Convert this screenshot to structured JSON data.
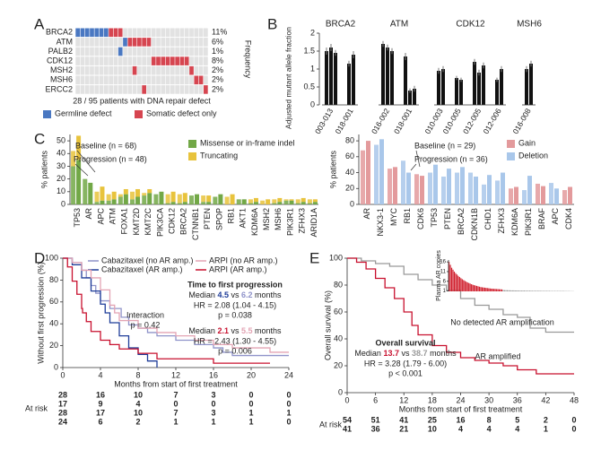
{
  "chart_data": [
    {
      "type": "oncoprint",
      "label": "A",
      "genes": [
        "BRCA2",
        "ATM",
        "PALB2",
        "CDK12",
        "MSH2",
        "MSH6",
        "ERCC2"
      ],
      "values": [
        11,
        6,
        1,
        8,
        2,
        2,
        2
      ],
      "value_labels": [
        "11%",
        "6%",
        "1%",
        "8%",
        "2%",
        "2%",
        "2%"
      ],
      "ylabel": "Frequency",
      "caption": "28 / 95 patients with DNA repair defect",
      "series": [
        {
          "name": "Germline defect",
          "color": "#4a78c2"
        },
        {
          "name": "Somatic defect only",
          "color": "#d64550"
        }
      ],
      "matrix": [
        [
          1,
          1,
          1,
          1,
          1,
          1,
          1,
          2,
          2,
          2,
          0,
          0,
          0,
          0,
          0,
          0,
          0,
          0,
          0,
          0,
          0,
          0,
          0,
          0,
          0,
          0,
          0,
          0
        ],
        [
          0,
          0,
          0,
          0,
          0,
          0,
          0,
          0,
          0,
          0,
          1,
          2,
          2,
          2,
          2,
          2,
          0,
          0,
          0,
          0,
          0,
          0,
          0,
          0,
          0,
          0,
          0,
          0
        ],
        [
          0,
          0,
          0,
          0,
          0,
          0,
          0,
          0,
          0,
          1,
          0,
          0,
          0,
          0,
          0,
          0,
          0,
          0,
          0,
          0,
          0,
          0,
          0,
          0,
          0,
          0,
          0,
          0
        ],
        [
          0,
          0,
          0,
          0,
          0,
          0,
          0,
          0,
          0,
          0,
          0,
          0,
          0,
          0,
          0,
          0,
          2,
          2,
          2,
          2,
          2,
          2,
          2,
          2,
          0,
          0,
          0,
          0
        ],
        [
          0,
          0,
          0,
          0,
          0,
          0,
          0,
          0,
          0,
          0,
          0,
          0,
          2,
          0,
          0,
          0,
          0,
          0,
          0,
          0,
          0,
          0,
          0,
          0,
          2,
          0,
          0,
          0
        ],
        [
          0,
          0,
          0,
          0,
          0,
          0,
          0,
          0,
          0,
          0,
          0,
          0,
          0,
          0,
          0,
          0,
          0,
          0,
          0,
          0,
          0,
          0,
          0,
          0,
          0,
          2,
          2,
          0
        ],
        [
          0,
          0,
          0,
          0,
          0,
          0,
          0,
          0,
          0,
          0,
          0,
          0,
          0,
          0,
          2,
          0,
          0,
          0,
          0,
          0,
          0,
          0,
          0,
          0,
          0,
          0,
          0,
          2
        ]
      ]
    },
    {
      "type": "grouped-bar",
      "label": "B",
      "ylabel": "Adjusted mutant allele fraction",
      "ylim": [
        0,
        2
      ],
      "yticks": [
        0,
        0.5,
        1,
        1.5,
        2
      ],
      "color": "#111111",
      "groups": [
        {
          "name": "BRCA2",
          "samples": [
            {
              "label": "003-013",
              "values": [
                1.5,
                1.6,
                1.45
              ],
              "errors": [
                0.1,
                0.1,
                0.08
              ]
            },
            {
              "label": "018-001",
              "values": [
                1.15,
                1.4
              ],
              "errors": [
                0.08,
                0.1
              ]
            }
          ]
        },
        {
          "name": "ATM",
          "samples": [
            {
              "label": "016-002",
              "values": [
                1.7,
                1.6,
                1.5
              ],
              "errors": [
                0.08,
                0.08,
                0.08
              ]
            },
            {
              "label": "018-001",
              "values": [
                1.35,
                0.4,
                0.45
              ],
              "errors": [
                0.1,
                0.06,
                0.08
              ]
            }
          ]
        },
        {
          "name": "CDK12",
          "samples": [
            {
              "label": "010-003",
              "values": [
                0.95,
                1.0
              ],
              "errors": [
                0.08,
                0.08
              ]
            },
            {
              "label": "010-005",
              "values": [
                0.75,
                0.7
              ],
              "errors": [
                0.06,
                0.06
              ]
            },
            {
              "label": "012-005",
              "values": [
                1.2,
                0.9,
                1.1
              ],
              "errors": [
                0.08,
                0.08,
                0.08
              ]
            },
            {
              "label": "012-006",
              "values": [
                0.7,
                1.0
              ],
              "errors": [
                0.06,
                0.08
              ]
            }
          ]
        },
        {
          "name": "MSH6",
          "samples": [
            {
              "label": "016-008",
              "values": [
                1.0,
                1.15
              ],
              "errors": [
                0.08,
                0.08
              ]
            }
          ]
        }
      ]
    },
    {
      "type": "paired-stacked-bar",
      "label": "C",
      "ylabel": "% patients",
      "ylim": [
        0,
        55
      ],
      "yticks": [
        0,
        10,
        20,
        30,
        40,
        50
      ],
      "annotations": [
        "Baseline (n = 68)",
        "Progression (n = 48)"
      ],
      "categories": [
        "TP53",
        "AR",
        "APC",
        "ATM",
        "FOXA1",
        "KMT2D",
        "KMT2C",
        "PIK3CA",
        "CDK12",
        "BRCA2",
        "CTNNB1",
        "PTEN",
        "SPOP",
        "RB1",
        "AKT1",
        "KDM6A",
        "MSH2",
        "MSH6",
        "PIK3R1",
        "ZFHX3",
        "ARID1A"
      ],
      "series": [
        {
          "name": "Missense or in-frame indel",
          "color": "#72a847",
          "baseline": [
            30,
            20,
            2,
            3,
            6,
            4,
            7,
            8,
            1,
            1,
            7,
            2,
            6,
            0,
            4,
            1,
            0,
            1,
            3,
            1,
            1
          ],
          "progression": [
            35,
            17,
            3,
            4,
            8,
            6,
            9,
            10,
            2,
            2,
            8,
            2,
            8,
            0,
            4,
            2,
            0,
            2,
            3,
            2,
            2
          ]
        },
        {
          "name": "Truncating",
          "color": "#e8c33c",
          "baseline": [
            12,
            0,
            8,
            5,
            2,
            6,
            2,
            0,
            7,
            7,
            0,
            5,
            0,
            6,
            0,
            3,
            3,
            3,
            1,
            3,
            3
          ],
          "progression": [
            19,
            0,
            11,
            6,
            4,
            6,
            3,
            0,
            8,
            7,
            0,
            5,
            0,
            8,
            0,
            3,
            4,
            3,
            1,
            3,
            2
          ]
        }
      ]
    },
    {
      "type": "paired-stacked-bar",
      "ylabel": "% patients",
      "ylim": [
        0,
        88
      ],
      "yticks": [
        0,
        20,
        40,
        60,
        80
      ],
      "annotations": [
        "Baseline (n = 29)",
        "Progression (n = 36)"
      ],
      "categories": [
        "AR",
        "NKX3-1",
        "MYC",
        "RB1",
        "CDK6",
        "TP53",
        "PTEN",
        "BRCA2",
        "CDKN1B",
        "CHD1",
        "ZFHX3",
        "KDM6A",
        "PIK3R1",
        "BRAF",
        "APC",
        "CDK4"
      ],
      "series": [
        {
          "name": "Gain",
          "color": "#e39a9c",
          "baseline": [
            68,
            null,
            45,
            null,
            38,
            null,
            null,
            null,
            null,
            null,
            null,
            20,
            null,
            26,
            null,
            18
          ],
          "progression": [
            80,
            null,
            47,
            null,
            36,
            null,
            null,
            null,
            null,
            null,
            null,
            22,
            null,
            23,
            null,
            22
          ]
        },
        {
          "name": "Deletion",
          "color": "#a9c7ea",
          "baseline": [
            null,
            75,
            null,
            55,
            null,
            40,
            35,
            40,
            40,
            25,
            30,
            null,
            18,
            null,
            27,
            null
          ],
          "progression": [
            null,
            82,
            null,
            40,
            null,
            50,
            45,
            47,
            35,
            37,
            40,
            null,
            36,
            null,
            20,
            null
          ]
        }
      ]
    },
    {
      "type": "kaplan-meier",
      "label": "D",
      "ylabel": "Without first progression (%)",
      "xlabel": "Months from start of first treatment",
      "xlim": [
        0,
        24
      ],
      "ylim": [
        0,
        100
      ],
      "xticks": [
        0,
        4,
        8,
        12,
        16,
        20,
        24
      ],
      "yticks": [
        0,
        20,
        40,
        60,
        80,
        100
      ],
      "at_risk_label": "At risk",
      "interaction": [
        "Interaction",
        "p = 0.42"
      ],
      "stats_title": "Time to first progression",
      "comparisons": [
        {
          "median": [
            "Median",
            "4.5",
            "vs",
            "6.2",
            "months"
          ],
          "hr": "HR = 2.08 (1.04 - 4.15)",
          "p": "p = 0.038"
        },
        {
          "median": [
            "Median",
            "2.1",
            "vs",
            "5.5",
            "months"
          ],
          "hr": "HR = 2.43 (1.30 - 4.55)",
          "p": "p = 0.006"
        }
      ],
      "series": [
        {
          "name": "Cabazitaxel (no AR amp.)",
          "color": "#8f93c9",
          "x": [
            0,
            1,
            2,
            2.5,
            3,
            3.5,
            4,
            5,
            6.2,
            7,
            8,
            9,
            10,
            12,
            14,
            16,
            17,
            18,
            24
          ],
          "y": [
            100,
            96,
            89,
            82,
            75,
            68,
            61,
            54,
            46,
            39,
            36,
            32,
            29,
            25,
            21,
            18,
            14,
            11,
            11
          ],
          "at_risk": [
            28,
            16,
            10,
            7,
            3,
            0,
            0
          ]
        },
        {
          "name": "Cabazitaxel (AR amp.)",
          "color": "#1f3d99",
          "x": [
            0,
            1,
            2,
            3,
            4,
            4.5,
            5,
            6,
            7,
            8,
            9,
            10
          ],
          "y": [
            100,
            94,
            82,
            70,
            58,
            50,
            41,
            29,
            18,
            12,
            6,
            0
          ],
          "at_risk": [
            17,
            9,
            4,
            0,
            0,
            0,
            0
          ]
        },
        {
          "name": "ARPI (no AR amp.)",
          "color": "#e3a4b4",
          "x": [
            0,
            1,
            2,
            3,
            4,
            5,
            5.5,
            6,
            8,
            10,
            12,
            14,
            16,
            18,
            20,
            22,
            24
          ],
          "y": [
            100,
            96,
            89,
            82,
            71,
            57,
            50,
            43,
            36,
            32,
            29,
            25,
            21,
            18,
            18,
            14,
            14
          ],
          "at_risk": [
            28,
            17,
            10,
            7,
            3,
            1,
            1
          ]
        },
        {
          "name": "ARPI (AR amp.)",
          "color": "#c8102e",
          "x": [
            0,
            0.5,
            1,
            1.5,
            2,
            2.1,
            2.5,
            3,
            4,
            5,
            6,
            8,
            10,
            14,
            16,
            20,
            22
          ],
          "y": [
            100,
            92,
            79,
            67,
            54,
            50,
            42,
            33,
            25,
            21,
            17,
            13,
            8,
            8,
            4,
            4,
            4
          ],
          "at_risk": [
            24,
            6,
            2,
            1,
            1,
            1,
            0
          ]
        }
      ]
    },
    {
      "type": "kaplan-meier",
      "label": "E",
      "ylabel": "Overall survival (%)",
      "xlabel": "Months from start of first treatment",
      "xlim": [
        0,
        48
      ],
      "ylim": [
        0,
        100
      ],
      "xticks": [
        0,
        6,
        12,
        18,
        24,
        30,
        36,
        42,
        48
      ],
      "yticks": [
        0,
        20,
        40,
        60,
        80,
        100
      ],
      "at_risk_label": "At risk",
      "stats_title": "Overall survival",
      "comparisons": [
        {
          "median": [
            "Median",
            "13.7",
            "vs",
            "38.7",
            "months"
          ],
          "hr": "HR = 3.28 (1.79 - 6.00)",
          "p": "p < 0.001"
        }
      ],
      "series": [
        {
          "name": "No detected AR amplification",
          "color": "#999999",
          "x": [
            0,
            3,
            6,
            9,
            12,
            15,
            18,
            21,
            24,
            27,
            30,
            33,
            36,
            38.7,
            42,
            48
          ],
          "y": [
            100,
            98,
            96,
            94,
            88,
            84,
            80,
            76,
            70,
            65,
            62,
            58,
            56,
            48,
            45,
            45
          ],
          "at_risk": [
            54,
            51,
            41,
            25,
            16,
            8,
            5,
            2,
            0
          ]
        },
        {
          "name": "AR amplified",
          "color": "#c8102e",
          "x": [
            0,
            2,
            4,
            6,
            8,
            10,
            12,
            13.7,
            15,
            18,
            21,
            24,
            27,
            30,
            33,
            36,
            40,
            48
          ],
          "y": [
            100,
            97,
            92,
            85,
            78,
            70,
            60,
            50,
            43,
            35,
            30,
            26,
            24,
            22,
            20,
            17,
            14,
            14
          ],
          "at_risk": [
            41,
            36,
            21,
            10,
            4,
            4,
            4,
            1,
            0
          ]
        }
      ],
      "inset": {
        "ylabel": "Plasma AR copies",
        "ylim": [
          0.8,
          17
        ],
        "yticks": [
          1,
          6,
          11,
          16
        ],
        "series": [
          {
            "color": "#d0202e",
            "values": [
              16,
              14.5,
              13,
              12,
              11,
              10.2,
              9.5,
              8.8,
              8.2,
              7.6,
              7.1,
              6.6,
              6.2,
              5.8,
              5.4,
              5.1,
              4.8,
              4.5,
              4.2,
              4,
              3.8,
              3.6,
              3.4,
              3.2,
              3,
              2.9,
              2.8,
              2.7,
              2.6,
              2.5,
              2.4,
              2.3,
              2.2,
              2.15,
              2.1,
              2.05,
              2,
              1.95,
              1.9,
              1.85,
              1.8
            ]
          },
          {
            "color": "#9a9a9a",
            "values": [
              1.5,
              1.45,
              1.4,
              1.4,
              1.35,
              1.35,
              1.3,
              1.3,
              1.3,
              1.25,
              1.25,
              1.25,
              1.2,
              1.2,
              1.2,
              1.2,
              1.2,
              1.15,
              1.15,
              1.15,
              1.15,
              1.15,
              1.1,
              1.1,
              1.1,
              1.1,
              1.1,
              1.1,
              1.1,
              1.05,
              1.05,
              1.05,
              1.05,
              1.05,
              1.05,
              1.05,
              1,
              1,
              1,
              1,
              1,
              1,
              1,
              1,
              1,
              1,
              1,
              0.95,
              0.95,
              0.95,
              0.95,
              0.9,
              0.9,
              0.9
            ]
          }
        ]
      }
    }
  ]
}
